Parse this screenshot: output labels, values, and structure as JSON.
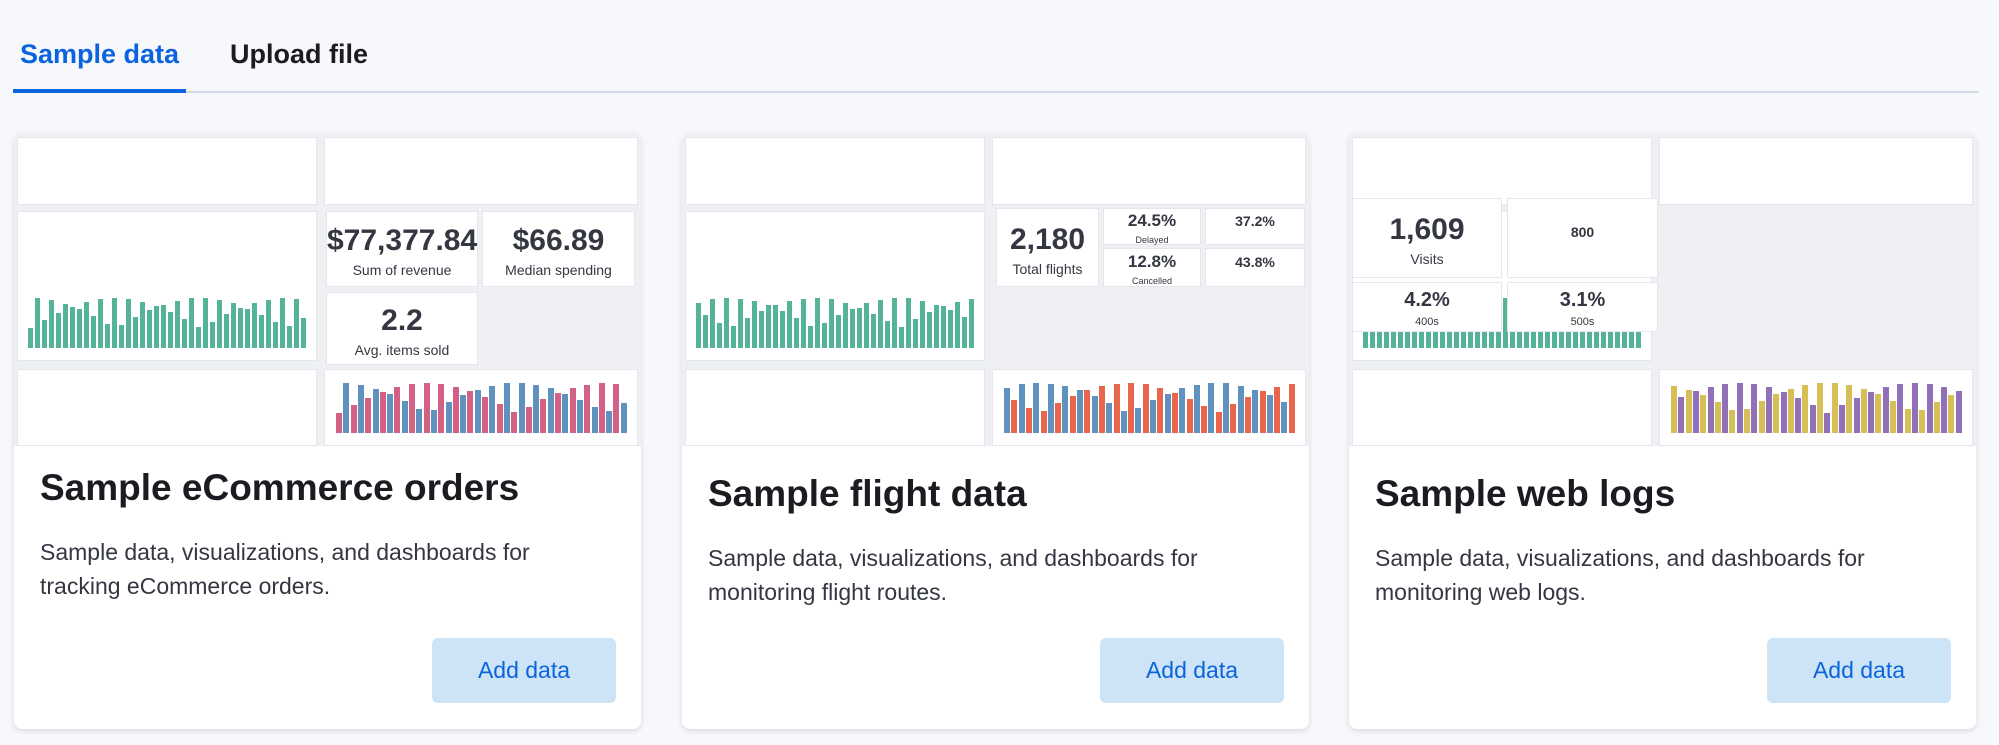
{
  "tabs": [
    "Sample data",
    "Upload file"
  ],
  "active_tab": 0,
  "cards": [
    {
      "title": "Sample eCommerce orders",
      "description": "Sample data, visualizations, and dashboards for tracking eCommerce orders.",
      "button": "Add data",
      "preview": {
        "metrics": [
          {
            "value": "$77,377.84",
            "label": "Sum of revenue"
          },
          {
            "value": "$66.89",
            "label": "Median spending"
          },
          {
            "value": "2.2",
            "label": "Avg. items sold"
          }
        ]
      }
    },
    {
      "title": "Sample flight data",
      "description": "Sample data, visualizations, and dashboards for monitoring flight routes.",
      "button": "Add data",
      "preview": {
        "metrics": [
          {
            "value": "2,180",
            "label": "Total flights"
          },
          {
            "value": "24.5%",
            "label": "Delayed"
          },
          {
            "value": "37.2%"
          },
          {
            "value": "12.8%",
            "label": "Cancelled"
          },
          {
            "value": "43.8%"
          }
        ]
      }
    },
    {
      "title": "Sample web logs",
      "description": "Sample data, visualizations, and dashboards for monitoring web logs.",
      "button": "Add data",
      "preview": {
        "metrics": [
          {
            "value": "1,609",
            "label": "Visits"
          },
          {
            "value": "800"
          },
          {
            "value": "4.2%",
            "label": "400s"
          },
          {
            "value": "3.1%",
            "label": "500s"
          }
        ]
      }
    }
  ]
}
